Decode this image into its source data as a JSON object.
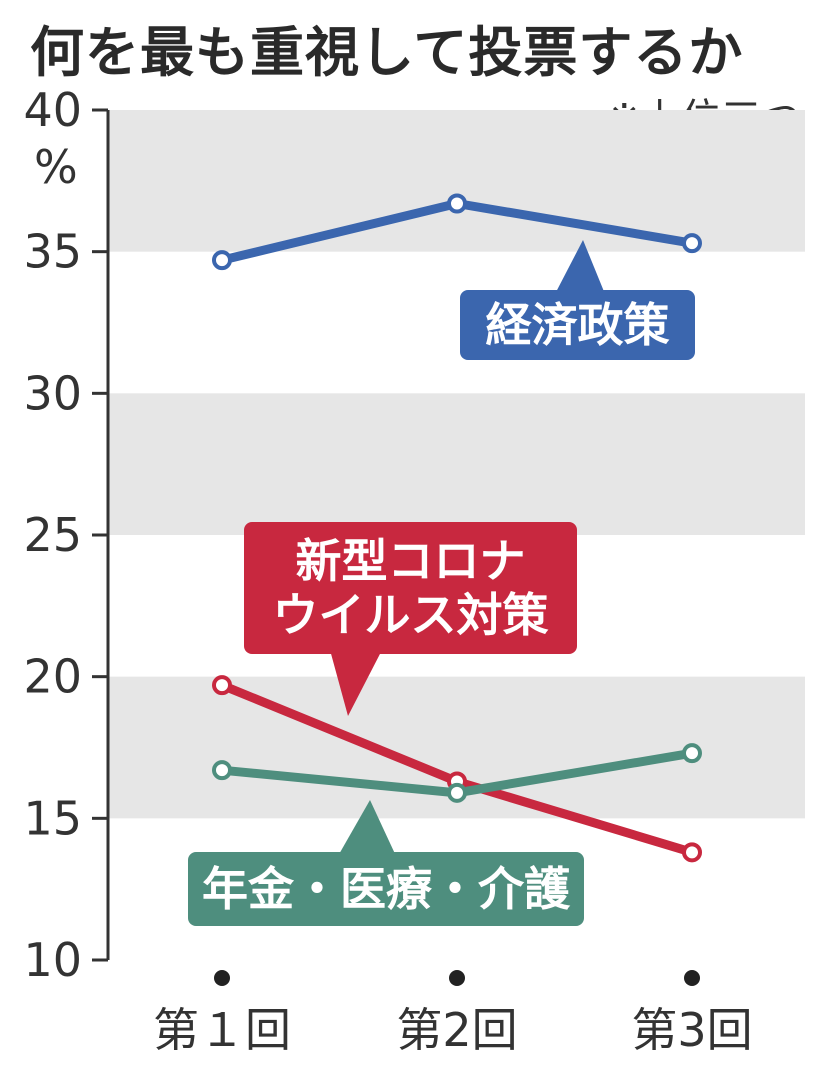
{
  "chart_data": {
    "type": "line",
    "title": "何を最も重視して投票するか",
    "note": "※上位三つ",
    "unit": "%",
    "categories": [
      "第１回",
      "第2回",
      "第3回"
    ],
    "ylim": [
      10,
      40
    ],
    "yticks": [
      10,
      15,
      20,
      25,
      30,
      35,
      40
    ],
    "grid": "alternating horizontal bands",
    "series": [
      {
        "name": "経済政策",
        "values": [
          34.7,
          36.7,
          35.3
        ],
        "color": "#3b66ae"
      },
      {
        "name": "新型コロナウイルス対策",
        "label_lines": [
          "新型コロナ",
          "ウイルス対策"
        ],
        "values": [
          19.7,
          16.3,
          13.8
        ],
        "color": "#c8283f"
      },
      {
        "name": "年金・医療・介護",
        "values": [
          16.7,
          15.9,
          17.3
        ],
        "color": "#4e8e7e"
      }
    ]
  }
}
